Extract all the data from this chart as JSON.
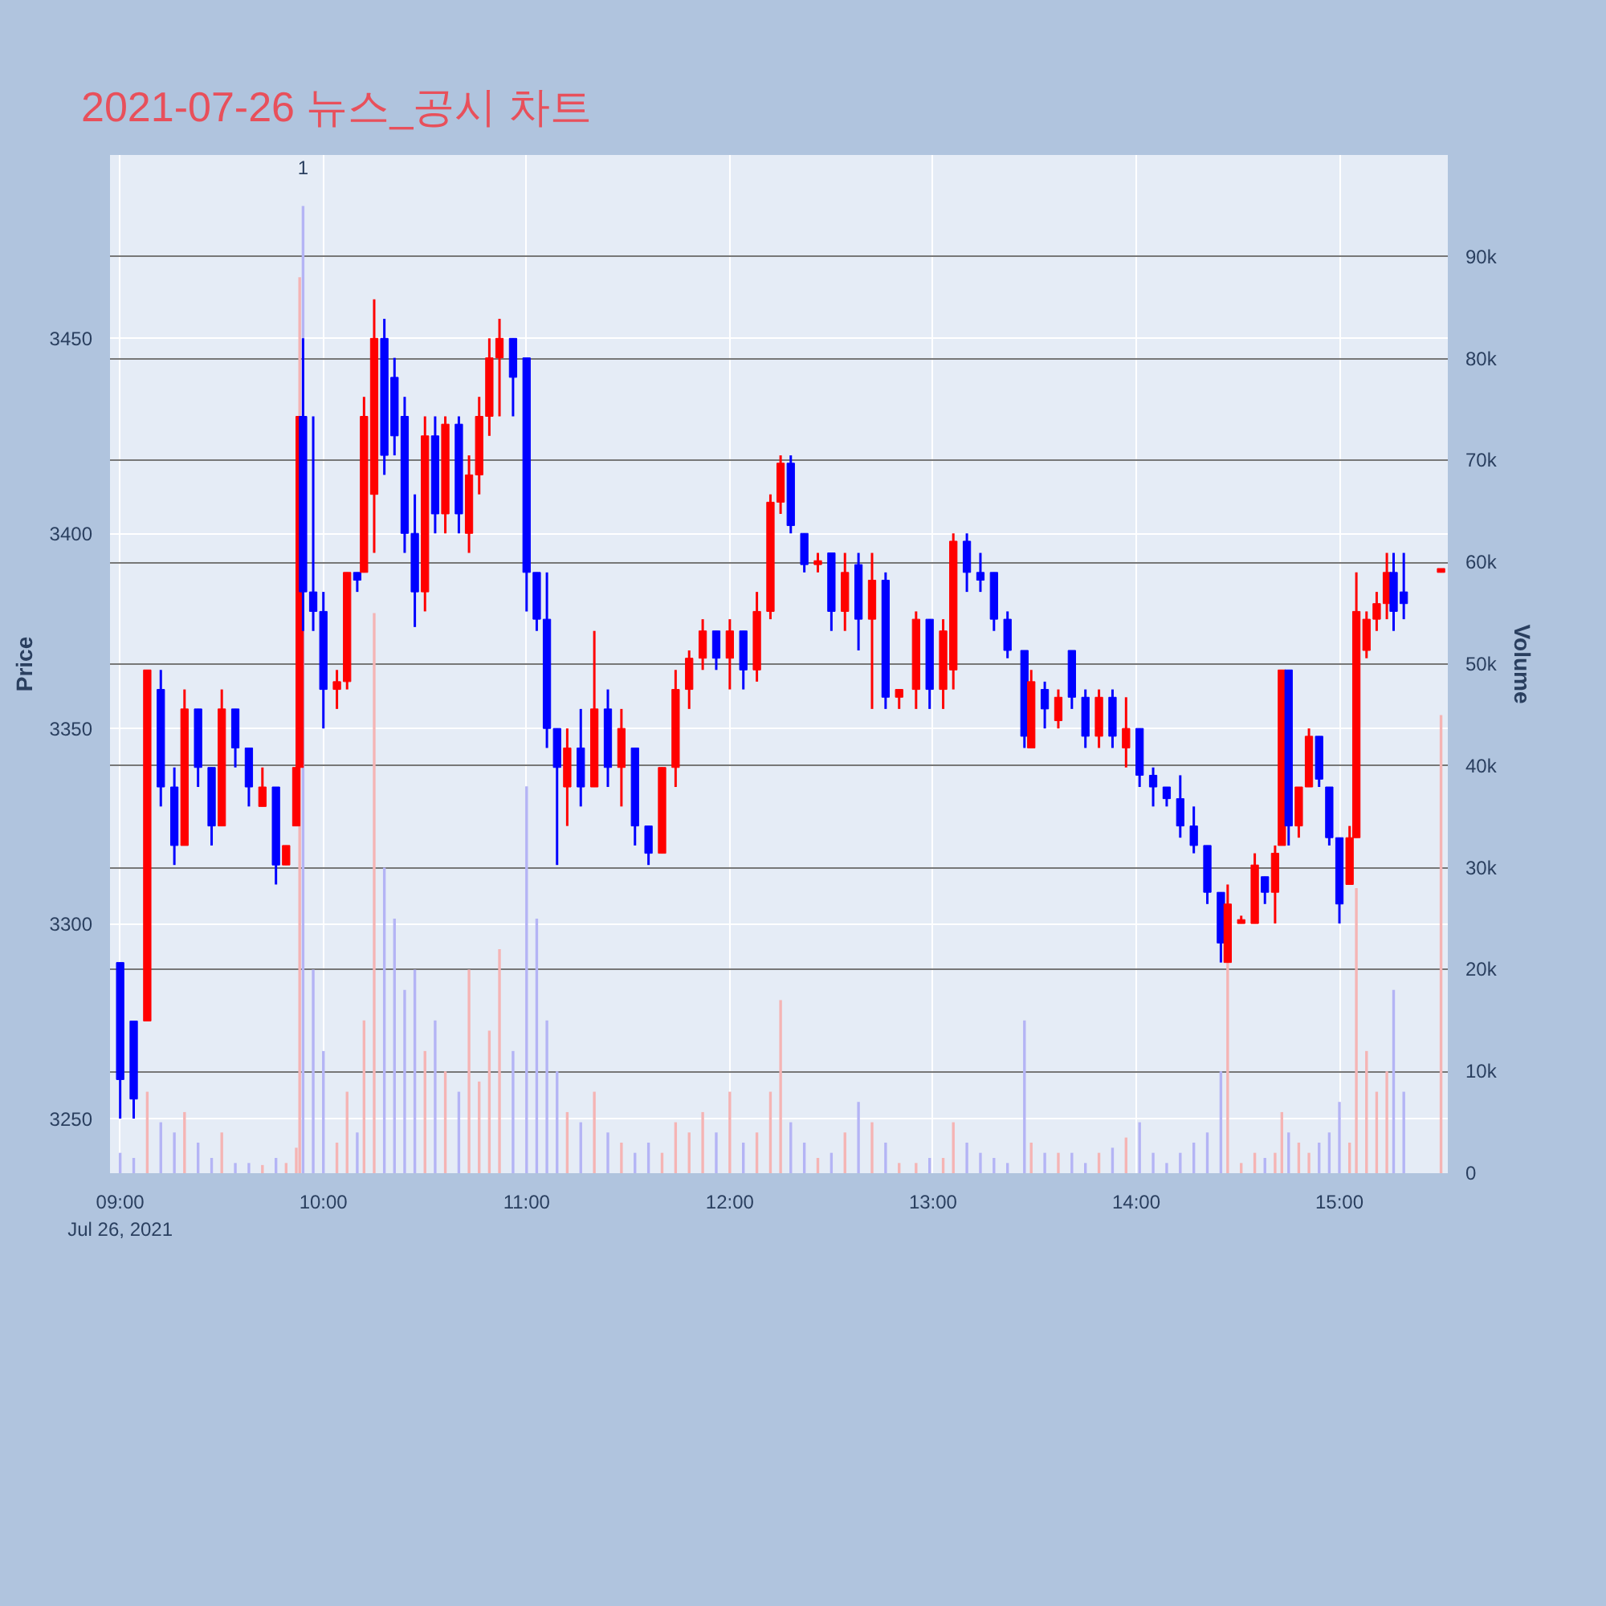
{
  "chart_data": {
    "type": "candlestick",
    "title": "2021-07-26 뉴스_공시 차트",
    "ylabel": "Price",
    "y2label": "Volume",
    "x": [
      "2021-07-26T09:00",
      "2021-07-26T09:04",
      "2021-07-26T09:08",
      "2021-07-26T09:12",
      "2021-07-26T09:16",
      "2021-07-26T09:19",
      "2021-07-26T09:23",
      "2021-07-26T09:27",
      "2021-07-26T09:30",
      "2021-07-26T09:34",
      "2021-07-26T09:38",
      "2021-07-26T09:42",
      "2021-07-26T09:46",
      "2021-07-26T09:49",
      "2021-07-26T09:52",
      "2021-07-26T09:53",
      "2021-07-26T09:54",
      "2021-07-26T09:57",
      "2021-07-26T10:00",
      "2021-07-26T10:04",
      "2021-07-26T10:07",
      "2021-07-26T10:10",
      "2021-07-26T10:12",
      "2021-07-26T10:15",
      "2021-07-26T10:18",
      "2021-07-26T10:21",
      "2021-07-26T10:24",
      "2021-07-26T10:27",
      "2021-07-26T10:30",
      "2021-07-26T10:33",
      "2021-07-26T10:36",
      "2021-07-26T10:40",
      "2021-07-26T10:43",
      "2021-07-26T10:46",
      "2021-07-26T10:49",
      "2021-07-26T10:52",
      "2021-07-26T10:56",
      "2021-07-26T11:00",
      "2021-07-26T11:03",
      "2021-07-26T11:06",
      "2021-07-26T11:09",
      "2021-07-26T11:12",
      "2021-07-26T11:16",
      "2021-07-26T11:20",
      "2021-07-26T11:24",
      "2021-07-26T11:28",
      "2021-07-26T11:32",
      "2021-07-26T11:36",
      "2021-07-26T11:40",
      "2021-07-26T11:44",
      "2021-07-26T11:48",
      "2021-07-26T11:52",
      "2021-07-26T11:56",
      "2021-07-26T12:00",
      "2021-07-26T12:04",
      "2021-07-26T12:08",
      "2021-07-26T12:12",
      "2021-07-26T12:15",
      "2021-07-26T12:18",
      "2021-07-26T12:22",
      "2021-07-26T12:26",
      "2021-07-26T12:30",
      "2021-07-26T12:34",
      "2021-07-26T12:38",
      "2021-07-26T12:42",
      "2021-07-26T12:46",
      "2021-07-26T12:50",
      "2021-07-26T12:55",
      "2021-07-26T12:59",
      "2021-07-26T13:03",
      "2021-07-26T13:06",
      "2021-07-26T13:10",
      "2021-07-26T13:14",
      "2021-07-26T13:18",
      "2021-07-26T13:22",
      "2021-07-26T13:27",
      "2021-07-26T13:29",
      "2021-07-26T13:33",
      "2021-07-26T13:37",
      "2021-07-26T13:41",
      "2021-07-26T13:45",
      "2021-07-26T13:49",
      "2021-07-26T13:53",
      "2021-07-26T13:57",
      "2021-07-26T14:01",
      "2021-07-26T14:05",
      "2021-07-26T14:09",
      "2021-07-26T14:13",
      "2021-07-26T14:17",
      "2021-07-26T14:21",
      "2021-07-26T14:25",
      "2021-07-26T14:27",
      "2021-07-26T14:31",
      "2021-07-26T14:35",
      "2021-07-26T14:38",
      "2021-07-26T14:41",
      "2021-07-26T14:43",
      "2021-07-26T14:45",
      "2021-07-26T14:48",
      "2021-07-26T14:51",
      "2021-07-26T14:54",
      "2021-07-26T14:57",
      "2021-07-26T15:00",
      "2021-07-26T15:03",
      "2021-07-26T15:05",
      "2021-07-26T15:08",
      "2021-07-26T15:11",
      "2021-07-26T15:14",
      "2021-07-26T15:16",
      "2021-07-26T15:19",
      "2021-07-26T15:30"
    ],
    "series": [
      {
        "ohlc": [
          [
            3290,
            3290,
            3250,
            3260
          ],
          [
            3275,
            3275,
            3250,
            3255
          ],
          [
            3275,
            3365,
            3275,
            3365
          ],
          [
            3360,
            3365,
            3330,
            3335
          ],
          [
            3335,
            3340,
            3315,
            3320
          ],
          [
            3320,
            3360,
            3320,
            3355
          ],
          [
            3355,
            3355,
            3335,
            3340
          ],
          [
            3340,
            3340,
            3320,
            3325
          ],
          [
            3325,
            3360,
            3325,
            3355
          ],
          [
            3355,
            3355,
            3340,
            3345
          ],
          [
            3345,
            3345,
            3330,
            3335
          ],
          [
            3330,
            3340,
            3330,
            3335
          ],
          [
            3335,
            3335,
            3310,
            3315
          ],
          [
            3315,
            3320,
            3315,
            3320
          ],
          [
            3325,
            3340,
            3325,
            3340
          ],
          [
            3340,
            3430,
            3340,
            3430
          ],
          [
            3430,
            3450,
            3375,
            3385
          ],
          [
            3385,
            3430,
            3375,
            3380
          ],
          [
            3380,
            3385,
            3350,
            3360
          ],
          [
            3360,
            3365,
            3355,
            3362
          ],
          [
            3362,
            3390,
            3360,
            3390
          ],
          [
            3390,
            3390,
            3385,
            3388
          ],
          [
            3390,
            3435,
            3390,
            3430
          ],
          [
            3410,
            3460,
            3395,
            3450
          ],
          [
            3450,
            3455,
            3415,
            3420
          ],
          [
            3440,
            3445,
            3420,
            3425
          ],
          [
            3430,
            3435,
            3395,
            3400
          ],
          [
            3400,
            3410,
            3376,
            3385
          ],
          [
            3385,
            3430,
            3380,
            3425
          ],
          [
            3425,
            3430,
            3400,
            3405
          ],
          [
            3405,
            3430,
            3400,
            3428
          ],
          [
            3428,
            3430,
            3400,
            3405
          ],
          [
            3400,
            3420,
            3395,
            3415
          ],
          [
            3415,
            3435,
            3410,
            3430
          ],
          [
            3430,
            3450,
            3425,
            3445
          ],
          [
            3445,
            3455,
            3430,
            3450
          ],
          [
            3450,
            3450,
            3430,
            3440
          ],
          [
            3445,
            3445,
            3380,
            3390
          ],
          [
            3390,
            3390,
            3375,
            3378
          ],
          [
            3378,
            3390,
            3345,
            3350
          ],
          [
            3350,
            3350,
            3315,
            3340
          ],
          [
            3335,
            3350,
            3325,
            3345
          ],
          [
            3345,
            3355,
            3330,
            3335
          ],
          [
            3335,
            3375,
            3335,
            3355
          ],
          [
            3355,
            3360,
            3335,
            3340
          ],
          [
            3340,
            3355,
            3330,
            3350
          ],
          [
            3345,
            3345,
            3320,
            3325
          ],
          [
            3325,
            3325,
            3315,
            3318
          ],
          [
            3318,
            3340,
            3318,
            3340
          ],
          [
            3340,
            3365,
            3335,
            3360
          ],
          [
            3360,
            3370,
            3355,
            3368
          ],
          [
            3368,
            3378,
            3365,
            3375
          ],
          [
            3375,
            3375,
            3365,
            3368
          ],
          [
            3368,
            3378,
            3360,
            3375
          ],
          [
            3375,
            3375,
            3360,
            3365
          ],
          [
            3365,
            3385,
            3362,
            3380
          ],
          [
            3380,
            3410,
            3378,
            3408
          ],
          [
            3408,
            3420,
            3405,
            3418
          ],
          [
            3418,
            3420,
            3400,
            3402
          ],
          [
            3400,
            3400,
            3390,
            3392
          ],
          [
            3392,
            3395,
            3390,
            3393
          ],
          [
            3395,
            3395,
            3375,
            3380
          ],
          [
            3380,
            3395,
            3375,
            3390
          ],
          [
            3392,
            3395,
            3370,
            3378
          ],
          [
            3378,
            3395,
            3355,
            3388
          ],
          [
            3388,
            3390,
            3355,
            3358
          ],
          [
            3358,
            3360,
            3355,
            3360
          ],
          [
            3360,
            3380,
            3355,
            3378
          ],
          [
            3378,
            3378,
            3355,
            3360
          ],
          [
            3360,
            3378,
            3355,
            3375
          ],
          [
            3365,
            3400,
            3360,
            3398
          ],
          [
            3398,
            3400,
            3385,
            3390
          ],
          [
            3390,
            3395,
            3385,
            3388
          ],
          [
            3390,
            3390,
            3375,
            3378
          ],
          [
            3378,
            3380,
            3368,
            3370
          ],
          [
            3370,
            3370,
            3345,
            3348
          ],
          [
            3345,
            3365,
            3345,
            3362
          ],
          [
            3360,
            3362,
            3350,
            3355
          ],
          [
            3352,
            3360,
            3350,
            3358
          ],
          [
            3370,
            3370,
            3355,
            3358
          ],
          [
            3358,
            3360,
            3345,
            3348
          ],
          [
            3348,
            3360,
            3345,
            3358
          ],
          [
            3358,
            3360,
            3345,
            3348
          ],
          [
            3345,
            3358,
            3340,
            3350
          ],
          [
            3350,
            3350,
            3335,
            3338
          ],
          [
            3338,
            3340,
            3330,
            3335
          ],
          [
            3335,
            3335,
            3330,
            3332
          ],
          [
            3332,
            3338,
            3322,
            3325
          ],
          [
            3325,
            3330,
            3318,
            3320
          ],
          [
            3320,
            3320,
            3305,
            3308
          ],
          [
            3308,
            3308,
            3290,
            3295
          ],
          [
            3290,
            3310,
            3290,
            3305
          ],
          [
            3300,
            3302,
            3300,
            3301
          ],
          [
            3300,
            3318,
            3300,
            3315
          ],
          [
            3312,
            3312,
            3305,
            3308
          ],
          [
            3308,
            3320,
            3300,
            3318
          ],
          [
            3320,
            3365,
            3320,
            3365
          ],
          [
            3365,
            3365,
            3320,
            3325
          ],
          [
            3325,
            3335,
            3322,
            3335
          ],
          [
            3335,
            3350,
            3335,
            3348
          ],
          [
            3348,
            3348,
            3335,
            3337
          ],
          [
            3335,
            3335,
            3320,
            3322
          ],
          [
            3322,
            3322,
            3300,
            3305
          ],
          [
            3310,
            3325,
            3310,
            3322
          ],
          [
            3322,
            3390,
            3322,
            3380
          ],
          [
            3370,
            3380,
            3368,
            3378
          ],
          [
            3378,
            3385,
            3375,
            3382
          ],
          [
            3382,
            3395,
            3378,
            3390
          ],
          [
            3390,
            3395,
            3375,
            3380
          ],
          [
            3385,
            3395,
            3378,
            3382
          ],
          [
            3390,
            3391,
            3390,
            3391
          ]
        ],
        "colors": [
          "#0000ff",
          "#0000ff",
          "#ff0000",
          "#0000ff",
          "#0000ff",
          "#ff0000",
          "#0000ff",
          "#0000ff",
          "#ff0000",
          "#0000ff",
          "#0000ff",
          "#ff0000",
          "#0000ff",
          "#ff0000",
          "#ff0000",
          "#ff0000",
          "#0000ff",
          "#0000ff",
          "#0000ff",
          "#ff0000",
          "#ff0000",
          "#0000ff",
          "#ff0000",
          "#ff0000",
          "#0000ff",
          "#0000ff",
          "#0000ff",
          "#0000ff",
          "#ff0000",
          "#0000ff",
          "#ff0000",
          "#0000ff",
          "#ff0000",
          "#ff0000",
          "#ff0000",
          "#ff0000",
          "#0000ff",
          "#0000ff",
          "#0000ff",
          "#0000ff",
          "#0000ff",
          "#ff0000",
          "#0000ff",
          "#ff0000",
          "#0000ff",
          "#ff0000",
          "#0000ff",
          "#0000ff",
          "#ff0000",
          "#ff0000",
          "#ff0000",
          "#ff0000",
          "#0000ff",
          "#ff0000",
          "#0000ff",
          "#ff0000",
          "#ff0000",
          "#ff0000",
          "#0000ff",
          "#0000ff",
          "#ff0000",
          "#0000ff",
          "#ff0000",
          "#0000ff",
          "#ff0000",
          "#0000ff",
          "#ff0000",
          "#ff0000",
          "#0000ff",
          "#ff0000",
          "#ff0000",
          "#0000ff",
          "#0000ff",
          "#0000ff",
          "#0000ff",
          "#0000ff",
          "#ff0000",
          "#0000ff",
          "#ff0000",
          "#0000ff",
          "#0000ff",
          "#ff0000",
          "#0000ff",
          "#ff0000",
          "#0000ff",
          "#0000ff",
          "#0000ff",
          "#0000ff",
          "#0000ff",
          "#0000ff",
          "#0000ff",
          "#ff0000",
          "#ff0000",
          "#ff0000",
          "#0000ff",
          "#ff0000",
          "#ff0000",
          "#0000ff",
          "#ff0000",
          "#ff0000",
          "#0000ff",
          "#0000ff",
          "#0000ff",
          "#ff0000",
          "#ff0000",
          "#ff0000",
          "#ff0000",
          "#ff0000",
          "#0000ff",
          "#0000ff",
          "#ff0000"
        ]
      },
      {
        "type": "bar",
        "axis": "y2",
        "values": [
          2000,
          1500,
          8000,
          5000,
          4000,
          6000,
          3000,
          1500,
          4000,
          1000,
          1000,
          800,
          1500,
          1000,
          2500,
          88000,
          95000,
          20000,
          12000,
          3000,
          8000,
          4000,
          15000,
          55000,
          30000,
          25000,
          18000,
          20000,
          12000,
          15000,
          10000,
          8000,
          20000,
          9000,
          14000,
          22000,
          12000,
          38000,
          25000,
          15000,
          10000,
          6000,
          5000,
          8000,
          4000,
          3000,
          2000,
          3000,
          2000,
          5000,
          4000,
          6000,
          4000,
          8000,
          3000,
          4000,
          8000,
          17000,
          5000,
          3000,
          1500,
          2000,
          4000,
          7000,
          5000,
          3000,
          1000,
          1000,
          1500,
          1500,
          5000,
          3000,
          2000,
          1500,
          1000,
          15000,
          3000,
          2000,
          2000,
          2000,
          1000,
          2000,
          2500,
          3500,
          5000,
          2000,
          1000,
          2000,
          3000,
          4000,
          10000,
          21000,
          1000,
          2000,
          1500,
          2000,
          6000,
          4000,
          3000,
          2000,
          3000,
          4000,
          7000,
          3000,
          28000,
          12000,
          8000,
          10000,
          18000,
          8000,
          45000
        ],
        "colors": [
          "#b4b4f5",
          "#b4b4f5",
          "#f5b4b4",
          "#b4b4f5",
          "#b4b4f5",
          "#f5b4b4",
          "#b4b4f5",
          "#b4b4f5",
          "#f5b4b4",
          "#b4b4f5",
          "#b4b4f5",
          "#f5b4b4",
          "#b4b4f5",
          "#f5b4b4",
          "#f5b4b4",
          "#f5b4b4",
          "#b4b4f5",
          "#b4b4f5",
          "#b4b4f5",
          "#f5b4b4",
          "#f5b4b4",
          "#b4b4f5",
          "#f5b4b4",
          "#f5b4b4",
          "#b4b4f5",
          "#b4b4f5",
          "#b4b4f5",
          "#b4b4f5",
          "#f5b4b4",
          "#b4b4f5",
          "#f5b4b4",
          "#b4b4f5",
          "#f5b4b4",
          "#f5b4b4",
          "#f5b4b4",
          "#f5b4b4",
          "#b4b4f5",
          "#b4b4f5",
          "#b4b4f5",
          "#b4b4f5",
          "#b4b4f5",
          "#f5b4b4",
          "#b4b4f5",
          "#f5b4b4",
          "#b4b4f5",
          "#f5b4b4",
          "#b4b4f5",
          "#b4b4f5",
          "#f5b4b4",
          "#f5b4b4",
          "#f5b4b4",
          "#f5b4b4",
          "#b4b4f5",
          "#f5b4b4",
          "#b4b4f5",
          "#f5b4b4",
          "#f5b4b4",
          "#f5b4b4",
          "#b4b4f5",
          "#b4b4f5",
          "#f5b4b4",
          "#b4b4f5",
          "#f5b4b4",
          "#b4b4f5",
          "#f5b4b4",
          "#b4b4f5",
          "#f5b4b4",
          "#f5b4b4",
          "#b4b4f5",
          "#f5b4b4",
          "#f5b4b4",
          "#b4b4f5",
          "#b4b4f5",
          "#b4b4f5",
          "#b4b4f5",
          "#b4b4f5",
          "#f5b4b4",
          "#b4b4f5",
          "#f5b4b4",
          "#b4b4f5",
          "#b4b4f5",
          "#f5b4b4",
          "#b4b4f5",
          "#f5b4b4",
          "#b4b4f5",
          "#b4b4f5",
          "#b4b4f5",
          "#b4b4f5",
          "#b4b4f5",
          "#b4b4f5",
          "#b4b4f5",
          "#f5b4b4",
          "#f5b4b4",
          "#f5b4b4",
          "#b4b4f5",
          "#f5b4b4",
          "#f5b4b4",
          "#b4b4f5",
          "#f5b4b4",
          "#f5b4b4",
          "#b4b4f5",
          "#b4b4f5",
          "#b4b4f5",
          "#f5b4b4",
          "#f5b4b4",
          "#f5b4b4",
          "#f5b4b4",
          "#f5b4b4",
          "#b4b4f5",
          "#b4b4f5",
          "#f5b4b4"
        ]
      }
    ],
    "xlim": [
      "2021-07-26T08:57",
      "2021-07-26T15:32"
    ],
    "xticks": [
      {
        "value": "2021-07-26T09:00",
        "label": "09:00\nJul 26, 2021"
      },
      {
        "value": "2021-07-26T10:00",
        "label": "10:00"
      },
      {
        "value": "2021-07-26T11:00",
        "label": "11:00"
      },
      {
        "value": "2021-07-26T12:00",
        "label": "12:00"
      },
      {
        "value": "2021-07-26T13:00",
        "label": "13:00"
      },
      {
        "value": "2021-07-26T14:00",
        "label": "14:00"
      },
      {
        "value": "2021-07-26T15:00",
        "label": "15:00"
      }
    ],
    "ylim": [
      3236,
      3497
    ],
    "yticks": [
      3250,
      3300,
      3350,
      3400,
      3450
    ],
    "y2lim": [
      0,
      100000
    ],
    "y2ticks": [
      {
        "value": 0,
        "label": "0"
      },
      {
        "value": 10000,
        "label": "10k"
      },
      {
        "value": 20000,
        "label": "20k"
      },
      {
        "value": 30000,
        "label": "30k"
      },
      {
        "value": 40000,
        "label": "40k"
      },
      {
        "value": 50000,
        "label": "50k"
      },
      {
        "value": 60000,
        "label": "60k"
      },
      {
        "value": 70000,
        "label": "70k"
      },
      {
        "value": 80000,
        "label": "80k"
      },
      {
        "value": 90000,
        "label": "90k"
      }
    ],
    "grid": true,
    "annotations": [
      "1"
    ]
  }
}
